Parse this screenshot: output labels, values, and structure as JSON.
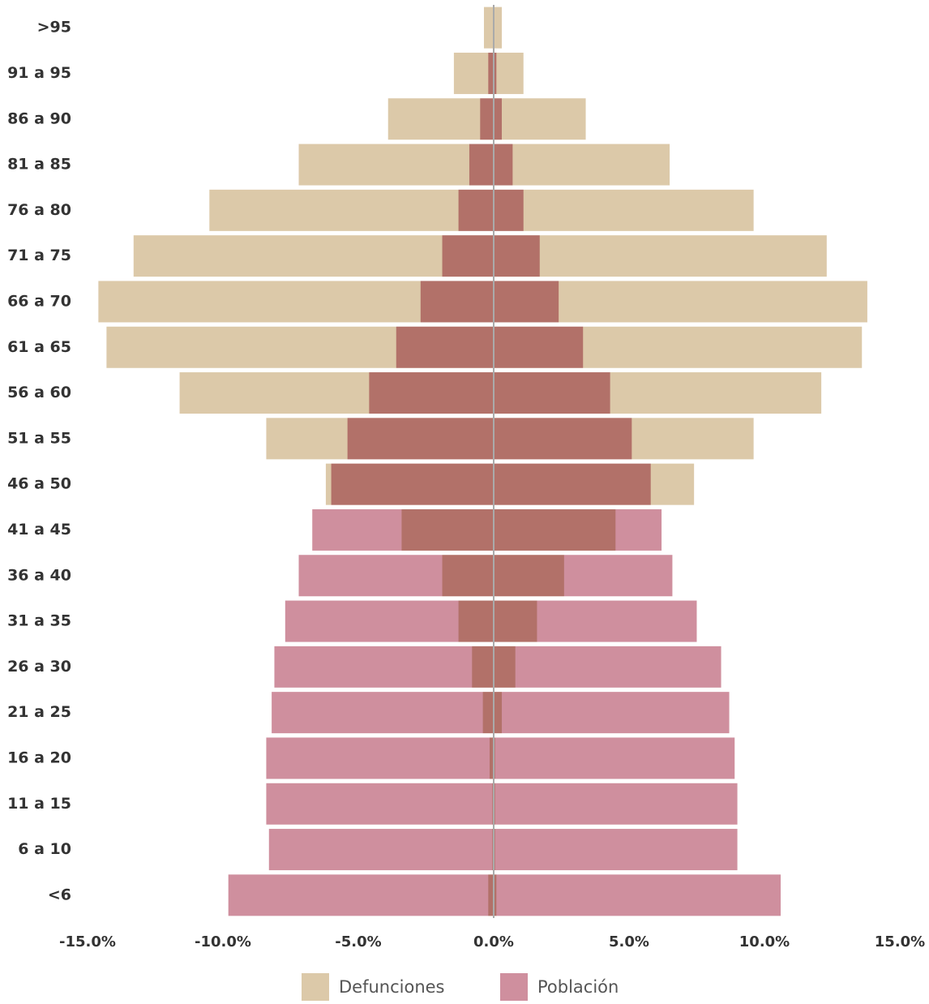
{
  "chart_data": {
    "type": "pyramid",
    "categories": [
      ">95",
      "91 a 95",
      "86 a 90",
      "81 a 85",
      "76 a 80",
      "71 a 75",
      "66 a 70",
      "61 a 65",
      "56 a 60",
      "51 a 55",
      "46 a 50",
      "41 a 45",
      "36 a 40",
      "31 a 35",
      "26 a 30",
      "21 a 25",
      "16 a 20",
      "11 a 15",
      "6 a 10",
      "<6"
    ],
    "series": [
      {
        "name": "Defunciones",
        "color": "#dcc9a9",
        "left": [
          -0.36,
          -1.47,
          -3.9,
          -7.2,
          -10.5,
          -13.3,
          -14.6,
          -14.3,
          -11.6,
          -8.4,
          -6.2,
          -3.4,
          -1.9,
          -1.3,
          -0.8,
          -0.4,
          -0.15,
          -0.05,
          -0.05,
          -0.2
        ],
        "right": [
          0.3,
          1.1,
          3.4,
          6.5,
          9.6,
          12.3,
          13.8,
          13.6,
          12.1,
          9.6,
          7.4,
          4.5,
          2.6,
          1.6,
          0.8,
          0.3,
          0.05,
          0.05,
          0.05,
          0.1
        ]
      },
      {
        "name": "Población",
        "color": "#cf8f9e",
        "left": [
          -0.03,
          -0.2,
          -0.5,
          -0.9,
          -1.3,
          -1.9,
          -2.7,
          -3.6,
          -4.6,
          -5.4,
          -6.0,
          -6.7,
          -7.2,
          -7.7,
          -8.1,
          -8.2,
          -8.4,
          -8.4,
          -8.3,
          -9.8
        ],
        "right": [
          0.03,
          0.1,
          0.3,
          0.7,
          1.1,
          1.7,
          2.4,
          3.3,
          4.3,
          5.1,
          5.8,
          6.2,
          6.6,
          7.5,
          8.4,
          8.7,
          8.9,
          9.0,
          9.0,
          10.6
        ]
      }
    ],
    "xlim": [
      -15,
      15
    ],
    "xticks": [
      {
        "value": -15,
        "label": "-15.0%"
      },
      {
        "value": -10,
        "label": "-10.0%"
      },
      {
        "value": -5,
        "label": "-5.0%"
      },
      {
        "value": 0,
        "label": "0.0%"
      },
      {
        "value": 5,
        "label": "5.0%"
      },
      {
        "value": 10,
        "label": "10.0%"
      },
      {
        "value": 15,
        "label": "15.0%"
      }
    ]
  }
}
